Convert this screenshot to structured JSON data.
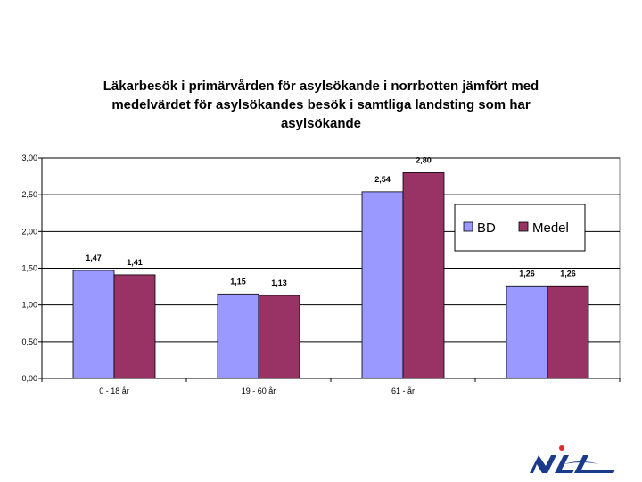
{
  "chart_data": {
    "type": "bar",
    "title": "Läkarbesök i primärvården för asylsökande i norrbotten jämfört med medelvärdet för asylsökandes besök i samtliga landsting som har asylsökande",
    "categories": [
      "0 - 18 år",
      "19 - 60 år",
      "61 - år",
      ""
    ],
    "series": [
      {
        "name": "BD",
        "values": [
          1.47,
          1.15,
          2.54,
          1.26
        ],
        "labels": [
          "1,47",
          "1,15",
          "2,54",
          "1,26"
        ],
        "color": "#9999ff"
      },
      {
        "name": "Medel",
        "values": [
          1.41,
          1.13,
          2.8,
          1.26
        ],
        "labels": [
          "1,41",
          "1,13",
          "2,80",
          "1,26"
        ],
        "color": "#993366"
      }
    ],
    "yticks": [
      "0,00",
      "0,50",
      "1,00",
      "1,50",
      "2,00",
      "2,50",
      "3,00"
    ],
    "ylim": [
      0,
      3
    ],
    "xlabel": "",
    "ylabel": "",
    "grid": true,
    "legend": "right",
    "plot_background": "#ffffff",
    "gridline_color": "#000000"
  },
  "logo": {
    "icon": "nll-logo-icon",
    "colors": [
      "#1a3a8a",
      "#e0282e"
    ]
  }
}
